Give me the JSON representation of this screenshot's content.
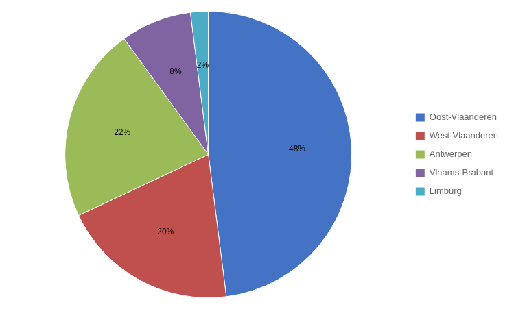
{
  "chart_data": {
    "type": "pie",
    "categories": [
      "Oost-Vlaanderen",
      "West-Vlaanderen",
      "Antwerpen",
      "Vlaams-Brabant",
      "Limburg"
    ],
    "values": [
      48,
      20,
      22,
      8,
      2
    ],
    "value_labels": [
      "48%",
      "20%",
      "22%",
      "8%",
      "2%"
    ],
    "colors": [
      "#4472C4",
      "#C0504D",
      "#9BBB59",
      "#8064A2",
      "#4BACC6"
    ],
    "legend": "right",
    "data_labels": true
  }
}
